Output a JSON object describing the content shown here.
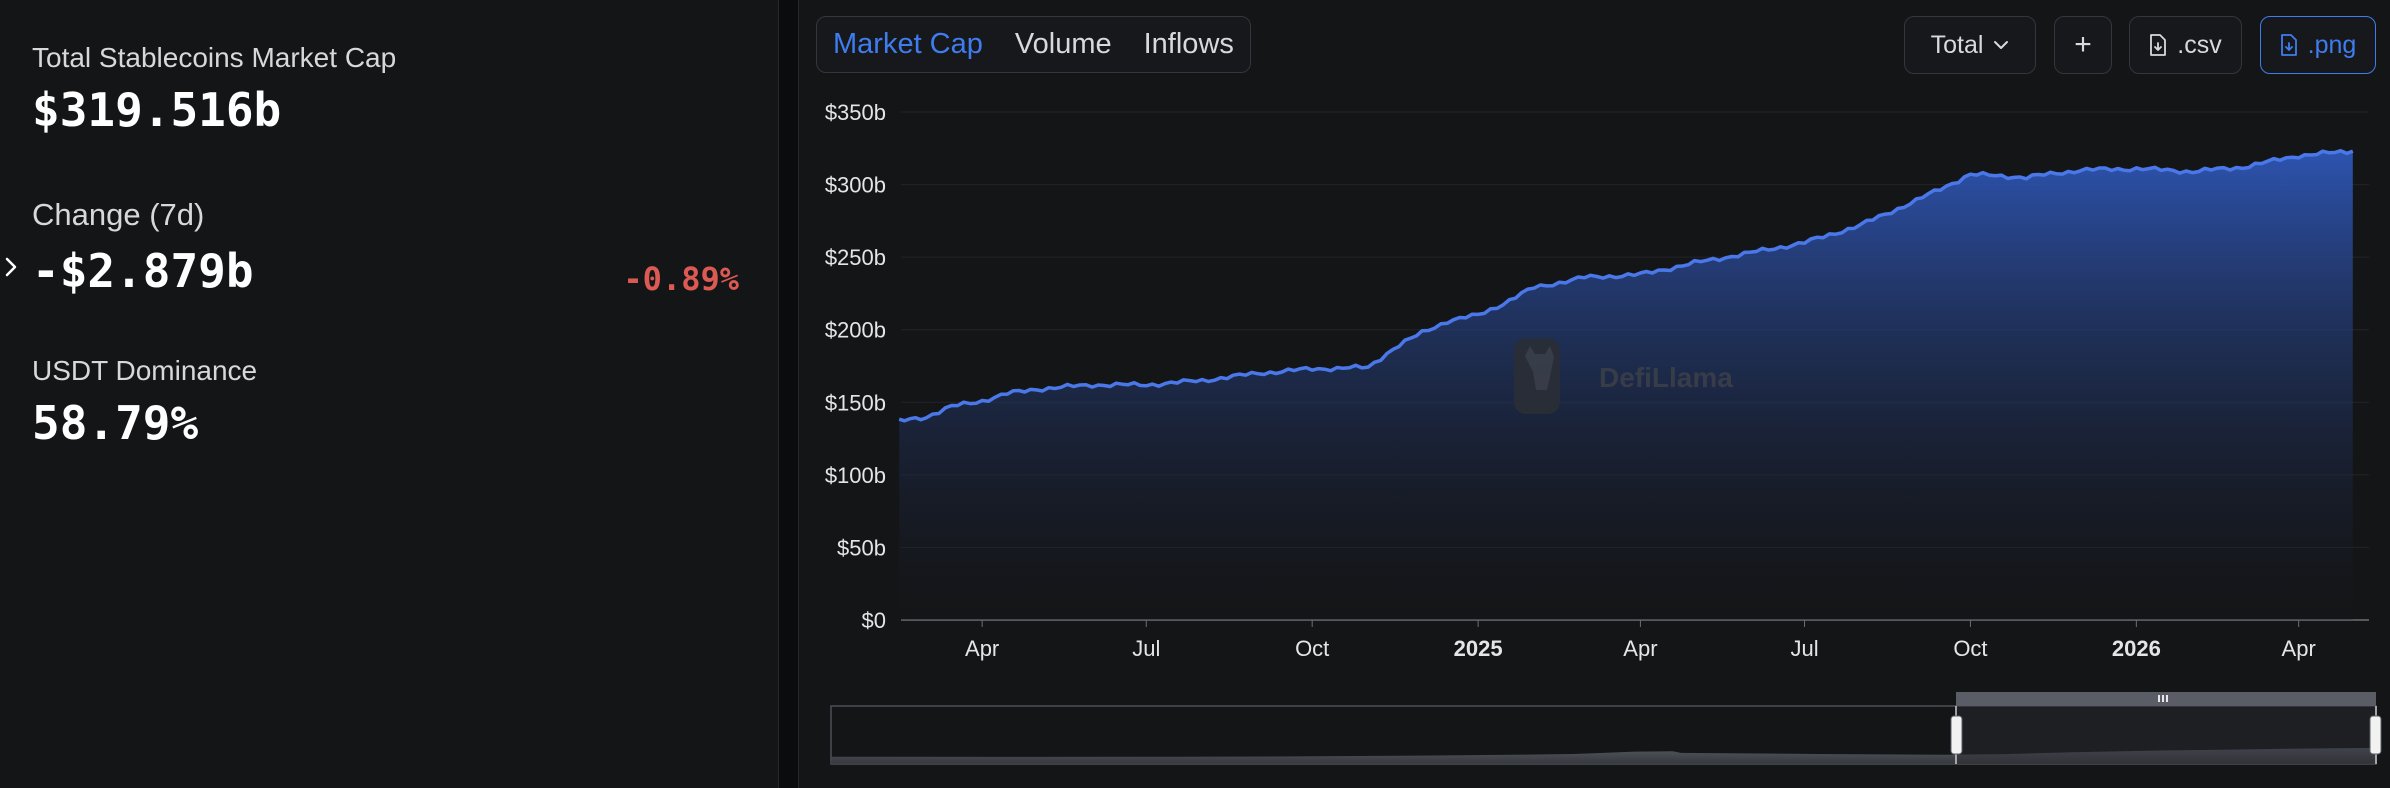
{
  "stats": {
    "total_label": "Total Stablecoins Market Cap",
    "total_value": "$319.516b",
    "change_label": "Change (7d)",
    "change_value": "-$2.879b",
    "change_pct": "-0.89%",
    "dominance_label": "USDT Dominance",
    "dominance_value": "58.79%"
  },
  "tabs": [
    {
      "label": "Market Cap",
      "active": true
    },
    {
      "label": "Volume",
      "active": false
    },
    {
      "label": "Inflows",
      "active": false
    }
  ],
  "controls": {
    "total_select": "Total",
    "add_label": "+",
    "csv_label": ".csv",
    "png_label": ".png"
  },
  "icons": {
    "expand": "chevron-right-icon",
    "dropdown": "chevron-down-icon",
    "download": "file-download-icon"
  },
  "colors": {
    "accent": "#3f7cf0",
    "line": "#4a78e8",
    "negative": "#db5a54",
    "background": "#141517"
  },
  "watermark": "DefiLlama",
  "chart_data": {
    "type": "area",
    "ylim": [
      0,
      350
    ],
    "yticks": [
      "$0",
      "$50b",
      "$100b",
      "$150b",
      "$200b",
      "$250b",
      "$300b",
      "$350b"
    ],
    "xticks": [
      {
        "label": "Apr",
        "bold": false
      },
      {
        "label": "Jul",
        "bold": false
      },
      {
        "label": "Oct",
        "bold": false
      },
      {
        "label": "2025",
        "bold": true
      },
      {
        "label": "Apr",
        "bold": false
      },
      {
        "label": "Jul",
        "bold": false
      },
      {
        "label": "Oct",
        "bold": false
      },
      {
        "label": "2026",
        "bold": true
      },
      {
        "label": "Apr",
        "bold": false
      }
    ],
    "x": [
      "2024-02-15",
      "2024-03-01",
      "2024-03-15",
      "2024-04-01",
      "2024-04-15",
      "2024-05-01",
      "2024-06-01",
      "2024-07-01",
      "2024-08-01",
      "2024-09-01",
      "2024-10-01",
      "2024-11-01",
      "2024-11-15",
      "2024-12-01",
      "2024-12-15",
      "2025-01-01",
      "2025-01-15",
      "2025-02-01",
      "2025-03-01",
      "2025-04-01",
      "2025-05-01",
      "2025-06-01",
      "2025-07-01",
      "2025-08-01",
      "2025-09-01",
      "2025-10-01",
      "2025-11-01",
      "2025-12-01",
      "2026-01-01",
      "2026-02-01",
      "2026-03-01",
      "2026-04-01",
      "2026-05-01"
    ],
    "values": [
      137,
      140,
      147,
      151,
      156,
      159,
      162,
      162,
      165,
      170,
      173,
      174,
      187,
      198,
      206,
      210,
      218,
      229,
      236,
      238,
      246,
      253,
      260,
      272,
      289,
      307,
      305,
      310,
      311,
      309,
      312,
      320,
      323
    ],
    "grid": true,
    "legend": "none"
  }
}
